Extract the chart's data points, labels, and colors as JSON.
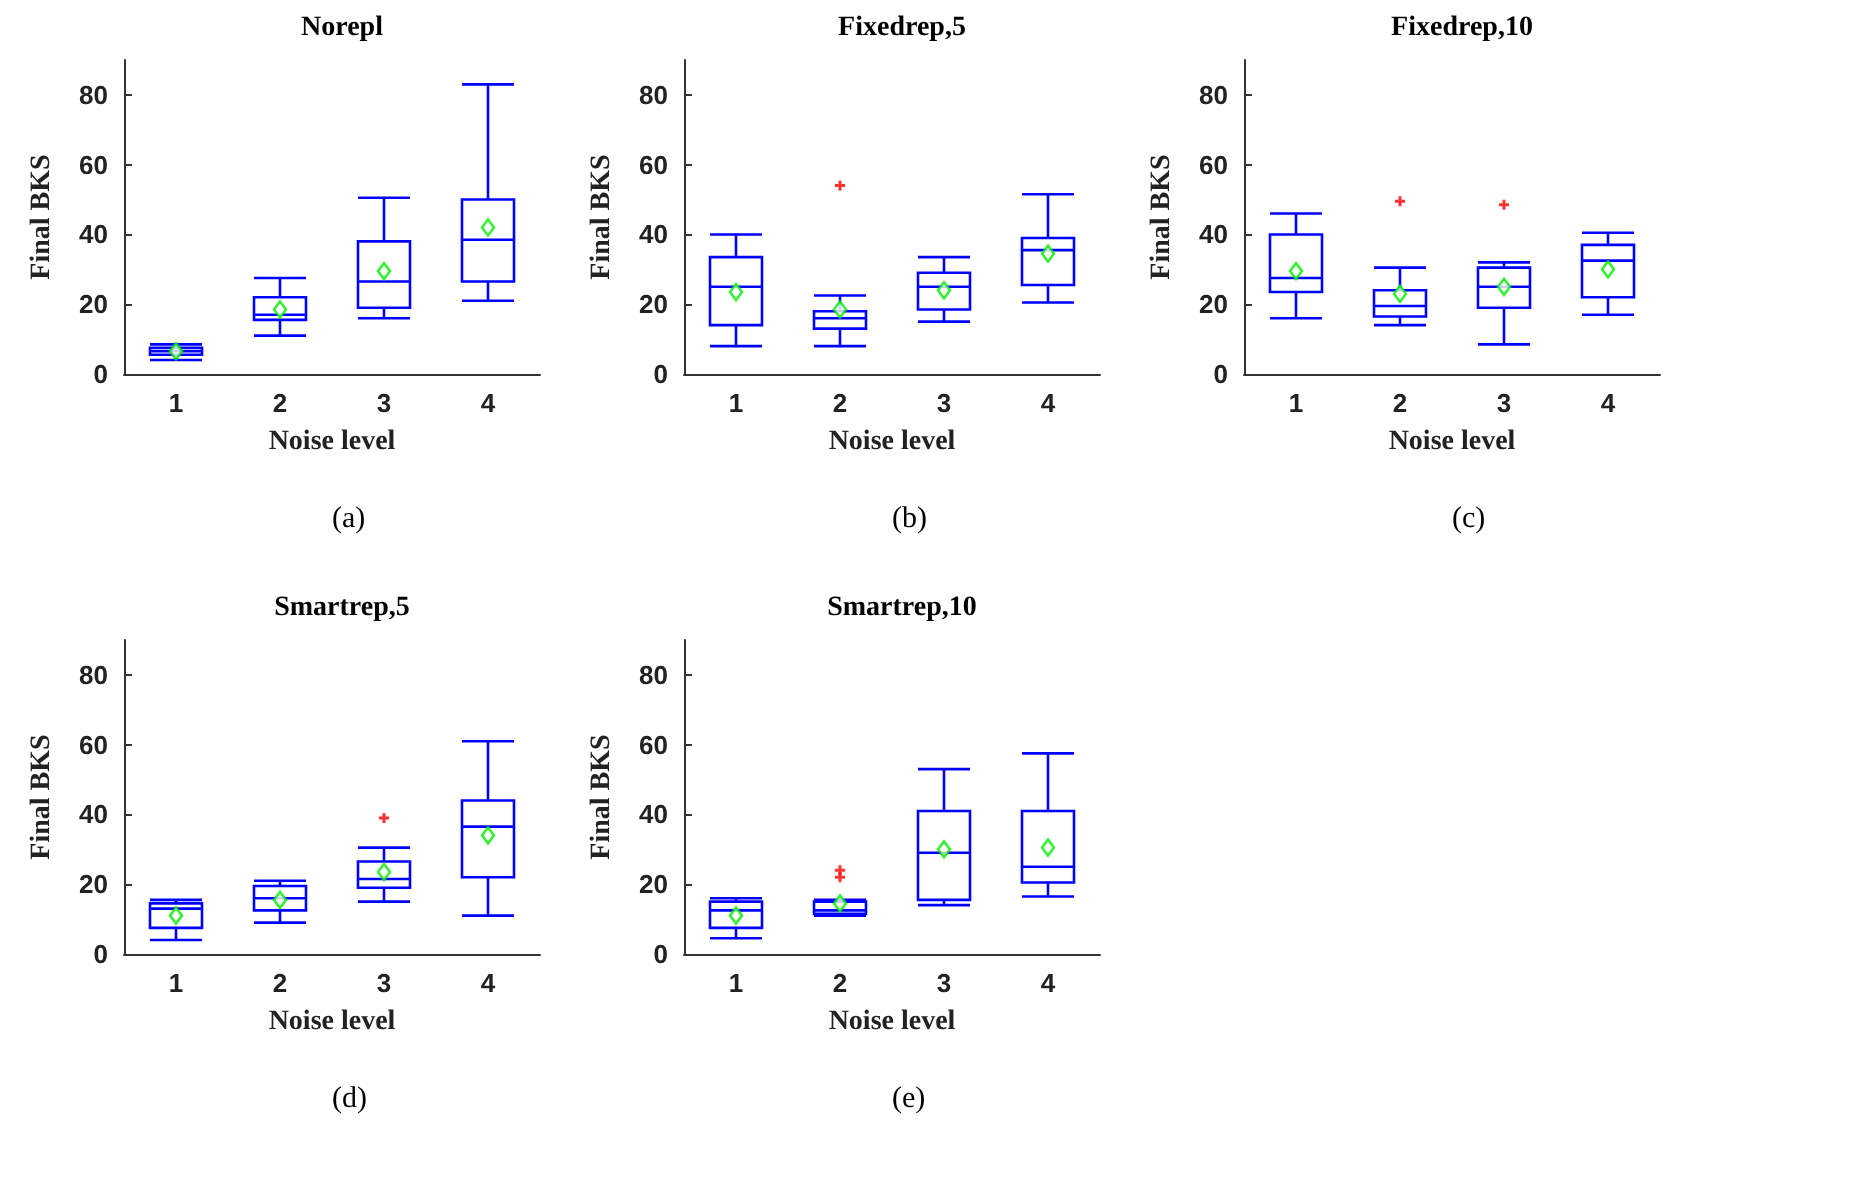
{
  "chart_data": [
    {
      "type": "box",
      "title": "Norepl",
      "xlabel": "Noise level",
      "ylabel": "Final BKS",
      "categories": [
        "1",
        "2",
        "3",
        "4"
      ],
      "ylim": [
        0,
        90
      ],
      "yticks": [
        0,
        20,
        40,
        60,
        80
      ],
      "annotations": [
        "(a)"
      ],
      "series": [
        {
          "color": "#0000ff",
          "boxes": [
            {
              "low": 4,
              "q1": 5.5,
              "median": 6.5,
              "q3": 7.5,
              "high": 8.5,
              "mean": 6.5
            },
            {
              "low": 11,
              "q1": 15.5,
              "median": 17,
              "q3": 22,
              "high": 27.5,
              "mean": 18.5
            },
            {
              "low": 16,
              "q1": 19,
              "median": 26.5,
              "q3": 38,
              "high": 50.5,
              "mean": 29.5
            },
            {
              "low": 21,
              "q1": 26.5,
              "median": 38.5,
              "q3": 50,
              "high": 83,
              "mean": 42
            }
          ]
        }
      ]
    },
    {
      "type": "box",
      "title": "Fixedrep,5",
      "xlabel": "Noise level",
      "ylabel": "Final BKS",
      "categories": [
        "1",
        "2",
        "3",
        "4"
      ],
      "ylim": [
        0,
        90
      ],
      "yticks": [
        0,
        20,
        40,
        60,
        80
      ],
      "annotations": [
        "(b)"
      ],
      "series": [
        {
          "color": "#0000ff",
          "boxes": [
            {
              "low": 8,
              "q1": 14,
              "median": 25,
              "q3": 33.5,
              "high": 40,
              "mean": 23.5
            },
            {
              "low": 8,
              "q1": 13,
              "median": 16,
              "q3": 18,
              "high": 22.5,
              "mean": 18.5,
              "outliers": [
                54
              ]
            },
            {
              "low": 15,
              "q1": 18.5,
              "median": 25,
              "q3": 29,
              "high": 33.5,
              "mean": 24
            },
            {
              "low": 20.5,
              "q1": 25.5,
              "median": 35.5,
              "q3": 39,
              "high": 51.5,
              "mean": 34.5
            }
          ]
        }
      ]
    },
    {
      "type": "box",
      "title": "Fixedrep,10",
      "xlabel": "Noise level",
      "ylabel": "Final BKS",
      "categories": [
        "1",
        "2",
        "3",
        "4"
      ],
      "ylim": [
        0,
        90
      ],
      "yticks": [
        0,
        20,
        40,
        60,
        80
      ],
      "annotations": [
        "(c)"
      ],
      "series": [
        {
          "color": "#0000ff",
          "boxes": [
            {
              "low": 16,
              "q1": 23.5,
              "median": 27.5,
              "q3": 40,
              "high": 46,
              "mean": 29.5
            },
            {
              "low": 14,
              "q1": 16.5,
              "median": 19.5,
              "q3": 24,
              "high": 30.5,
              "mean": 23,
              "outliers": [
                49.5
              ]
            },
            {
              "low": 8.5,
              "q1": 19,
              "median": 25,
              "q3": 30.5,
              "high": 32,
              "mean": 25,
              "outliers": [
                48.5
              ]
            },
            {
              "low": 17,
              "q1": 22,
              "median": 32.5,
              "q3": 37,
              "high": 40.5,
              "mean": 30
            }
          ]
        }
      ]
    },
    {
      "type": "box",
      "title": "Smartrep,5",
      "xlabel": "Noise level",
      "ylabel": "Final BKS",
      "categories": [
        "1",
        "2",
        "3",
        "4"
      ],
      "ylim": [
        0,
        90
      ],
      "yticks": [
        0,
        20,
        40,
        60,
        80
      ],
      "annotations": [
        "(d)"
      ],
      "series": [
        {
          "color": "#0000ff",
          "boxes": [
            {
              "low": 4,
              "q1": 7.5,
              "median": 13,
              "q3": 14.5,
              "high": 15.5,
              "mean": 11
            },
            {
              "low": 9,
              "q1": 12.5,
              "median": 16,
              "q3": 19.5,
              "high": 21,
              "mean": 15.5
            },
            {
              "low": 15,
              "q1": 19,
              "median": 21.5,
              "q3": 26.5,
              "high": 30.5,
              "mean": 23.5,
              "outliers": [
                39
              ]
            },
            {
              "low": 11,
              "q1": 22,
              "median": 36.5,
              "q3": 44,
              "high": 61,
              "mean": 34
            }
          ]
        }
      ]
    },
    {
      "type": "box",
      "title": "Smartrep,10",
      "xlabel": "Noise level",
      "ylabel": "Final BKS",
      "categories": [
        "1",
        "2",
        "3",
        "4"
      ],
      "ylim": [
        0,
        90
      ],
      "yticks": [
        0,
        20,
        40,
        60,
        80
      ],
      "annotations": [
        "(e)"
      ],
      "series": [
        {
          "color": "#0000ff",
          "boxes": [
            {
              "low": 4.5,
              "q1": 7.5,
              "median": 12.5,
              "q3": 15,
              "high": 16,
              "mean": 11
            },
            {
              "low": 11,
              "q1": 11.5,
              "median": 12.5,
              "q3": 15,
              "high": 15.5,
              "mean": 14.5,
              "outliers": [
                22,
                24
              ]
            },
            {
              "low": 14,
              "q1": 15.5,
              "median": 29,
              "q3": 41,
              "high": 53,
              "mean": 30
            },
            {
              "low": 16.5,
              "q1": 20.5,
              "median": 25,
              "q3": 41,
              "high": 57.5,
              "mean": 30.5
            }
          ]
        }
      ]
    }
  ]
}
